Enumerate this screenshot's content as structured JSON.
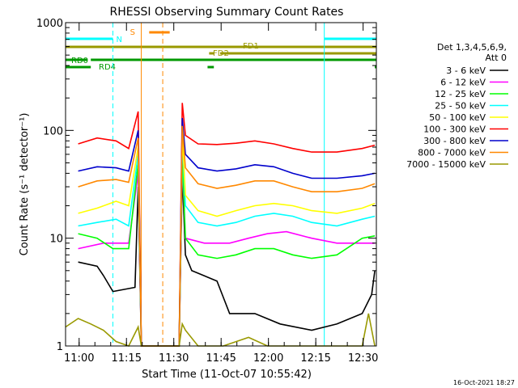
{
  "chart_data": {
    "type": "line",
    "title": "RHESSI Observing Summary Count Rates",
    "xlabel": "Start Time (11-Oct-07 10:55:42)",
    "ylabel": "Count Rate (s⁻¹ detector⁻¹)",
    "yscale": "log",
    "ylim": [
      1,
      1000
    ],
    "xlim_minutes_after_start": [
      0,
      98.5
    ],
    "x_ticks": [
      "11:00",
      "11:15",
      "11:30",
      "11:45",
      "12:00",
      "12:15",
      "12:30"
    ],
    "y_ticks": [
      "1",
      "10",
      "100",
      "1000"
    ],
    "legend_header": [
      "Det 1,3,4,5,6,9,",
      "Att 0"
    ],
    "legend_position": "right",
    "date_stamp": "16-Oct-2021 18:27",
    "series": [
      {
        "name": "3 - 6 keV",
        "color": "#000000",
        "points": [
          [
            4,
            6
          ],
          [
            10,
            5.5
          ],
          [
            12,
            4.5
          ],
          [
            15,
            3.2
          ],
          [
            22,
            3.5
          ],
          [
            23,
            30
          ],
          [
            24,
            1
          ],
          [
            36,
            1
          ],
          [
            37,
            40
          ],
          [
            38,
            7
          ],
          [
            40,
            5
          ],
          [
            48,
            4
          ],
          [
            52,
            2
          ],
          [
            60,
            2
          ],
          [
            68,
            1.6
          ],
          [
            78,
            1.4
          ],
          [
            86,
            1.6
          ],
          [
            94,
            2
          ],
          [
            97,
            3
          ],
          [
            98,
            5
          ]
        ]
      },
      {
        "name": "6 - 12 keV",
        "color": "#ff00ff",
        "points": [
          [
            4,
            8
          ],
          [
            12,
            9
          ],
          [
            20,
            9
          ],
          [
            23,
            40
          ],
          [
            24,
            1
          ],
          [
            36,
            1
          ],
          [
            37,
            50
          ],
          [
            38,
            10
          ],
          [
            44,
            9
          ],
          [
            52,
            9
          ],
          [
            58,
            10
          ],
          [
            64,
            11
          ],
          [
            70,
            11.5
          ],
          [
            78,
            10
          ],
          [
            86,
            9
          ],
          [
            94,
            9
          ],
          [
            98,
            9
          ]
        ]
      },
      {
        "name": "12 - 25 keV",
        "color": "#00ff00",
        "points": [
          [
            4,
            11
          ],
          [
            10,
            10
          ],
          [
            15,
            8
          ],
          [
            20,
            8
          ],
          [
            23,
            50
          ],
          [
            24,
            1
          ],
          [
            36,
            1
          ],
          [
            37,
            60
          ],
          [
            38,
            10
          ],
          [
            42,
            7
          ],
          [
            48,
            6.5
          ],
          [
            54,
            7
          ],
          [
            60,
            8
          ],
          [
            66,
            8
          ],
          [
            72,
            7
          ],
          [
            78,
            6.5
          ],
          [
            86,
            7
          ],
          [
            94,
            10
          ],
          [
            98,
            10.5
          ]
        ]
      },
      {
        "name": "25 - 50 keV",
        "color": "#00ffff",
        "points": [
          [
            4,
            13
          ],
          [
            10,
            14
          ],
          [
            16,
            15
          ],
          [
            20,
            13
          ],
          [
            23,
            60
          ],
          [
            24,
            1
          ],
          [
            36,
            1
          ],
          [
            37,
            80
          ],
          [
            38,
            20
          ],
          [
            42,
            14
          ],
          [
            48,
            13
          ],
          [
            54,
            14
          ],
          [
            60,
            16
          ],
          [
            66,
            17
          ],
          [
            72,
            16
          ],
          [
            78,
            14
          ],
          [
            86,
            13
          ],
          [
            94,
            15
          ],
          [
            98,
            16
          ]
        ]
      },
      {
        "name": "50 - 100 keV",
        "color": "#ffff00",
        "points": [
          [
            4,
            17
          ],
          [
            10,
            19
          ],
          [
            16,
            22
          ],
          [
            20,
            20
          ],
          [
            23,
            70
          ],
          [
            24,
            1
          ],
          [
            36,
            1
          ],
          [
            37,
            90
          ],
          [
            38,
            25
          ],
          [
            42,
            18
          ],
          [
            48,
            16
          ],
          [
            54,
            18
          ],
          [
            60,
            20
          ],
          [
            66,
            21
          ],
          [
            72,
            20
          ],
          [
            78,
            18
          ],
          [
            86,
            17
          ],
          [
            94,
            19
          ],
          [
            98,
            21
          ]
        ]
      },
      {
        "name": "100 - 300 keV",
        "color": "#ff0000",
        "points": [
          [
            4,
            75
          ],
          [
            10,
            85
          ],
          [
            16,
            80
          ],
          [
            20,
            68
          ],
          [
            23,
            150
          ],
          [
            24,
            1
          ],
          [
            36,
            1
          ],
          [
            37,
            180
          ],
          [
            38,
            90
          ],
          [
            42,
            75
          ],
          [
            48,
            74
          ],
          [
            54,
            76
          ],
          [
            60,
            80
          ],
          [
            66,
            75
          ],
          [
            72,
            68
          ],
          [
            78,
            63
          ],
          [
            86,
            63
          ],
          [
            94,
            68
          ],
          [
            98,
            73
          ]
        ]
      },
      {
        "name": "300 - 800 keV",
        "color": "#0000cc",
        "points": [
          [
            4,
            42
          ],
          [
            10,
            46
          ],
          [
            16,
            45
          ],
          [
            20,
            42
          ],
          [
            23,
            100
          ],
          [
            24,
            1
          ],
          [
            36,
            1
          ],
          [
            37,
            130
          ],
          [
            38,
            60
          ],
          [
            42,
            45
          ],
          [
            48,
            42
          ],
          [
            54,
            44
          ],
          [
            60,
            48
          ],
          [
            66,
            46
          ],
          [
            72,
            40
          ],
          [
            78,
            36
          ],
          [
            86,
            36
          ],
          [
            94,
            38
          ],
          [
            98,
            40
          ]
        ]
      },
      {
        "name": "800 - 7000 keV",
        "color": "#ff8800",
        "points": [
          [
            4,
            30
          ],
          [
            10,
            34
          ],
          [
            16,
            35
          ],
          [
            20,
            33
          ],
          [
            23,
            85
          ],
          [
            24,
            1
          ],
          [
            36,
            1
          ],
          [
            37,
            110
          ],
          [
            38,
            45
          ],
          [
            42,
            32
          ],
          [
            48,
            29
          ],
          [
            54,
            31
          ],
          [
            60,
            34
          ],
          [
            66,
            34
          ],
          [
            72,
            30
          ],
          [
            78,
            27
          ],
          [
            86,
            27
          ],
          [
            94,
            29
          ],
          [
            98,
            32
          ]
        ]
      },
      {
        "name": "7000 - 15000 keV",
        "color": "#999900",
        "points": [
          [
            0,
            1.5
          ],
          [
            4,
            1.8
          ],
          [
            8,
            1.6
          ],
          [
            12,
            1.4
          ],
          [
            16,
            1.1
          ],
          [
            20,
            1.0
          ],
          [
            23,
            1.5
          ],
          [
            24,
            1
          ],
          [
            36,
            1
          ],
          [
            37,
            1.6
          ],
          [
            38,
            1.4
          ],
          [
            42,
            1.0
          ],
          [
            50,
            1.0
          ],
          [
            58,
            1.2
          ],
          [
            64,
            1.0
          ],
          [
            72,
            1.0
          ],
          [
            80,
            1.0
          ],
          [
            88,
            1.0
          ],
          [
            94,
            1.0
          ],
          [
            96,
            2
          ],
          [
            98,
            1
          ]
        ]
      }
    ],
    "flag_bars": [
      {
        "label": "N",
        "color": "#00ffff",
        "row": 0,
        "segments": [
          [
            0,
            15
          ],
          [
            82,
            98.5
          ]
        ]
      },
      {
        "label": "S",
        "color": "#ff8800",
        "row": -1,
        "segments": [
          [
            26.5,
            33
          ]
        ]
      },
      {
        "label": "FD1",
        "color": "#999900",
        "row": 1,
        "segments": [
          [
            0,
            98.5
          ]
        ]
      },
      {
        "label": "FD2",
        "color": "#999900",
        "row": 2,
        "segments": [
          [
            45.5,
            47
          ],
          [
            49,
            98.5
          ]
        ]
      },
      {
        "label": "RD0",
        "color": "#009900",
        "row": 3,
        "segments": [
          [
            0,
            7
          ],
          [
            8,
            98.5
          ]
        ]
      },
      {
        "label": "RD4",
        "color": "#009900",
        "row": 4,
        "segments": [
          [
            0,
            8
          ],
          [
            45,
            47
          ],
          [
            98,
            98.5
          ]
        ]
      }
    ],
    "vertical_markers": [
      {
        "x": 0,
        "color": "#00ffff",
        "style": "solid"
      },
      {
        "x": 15,
        "color": "#00ffff",
        "style": "dashed"
      },
      {
        "x": 24,
        "color": "#ff8800",
        "style": "solid"
      },
      {
        "x": 30.8,
        "color": "#ff8800",
        "style": "dashed"
      },
      {
        "x": 82,
        "color": "#00ffff",
        "style": "solid"
      },
      {
        "x": 98.5,
        "color": "#00ffff",
        "style": "dashed"
      }
    ]
  }
}
